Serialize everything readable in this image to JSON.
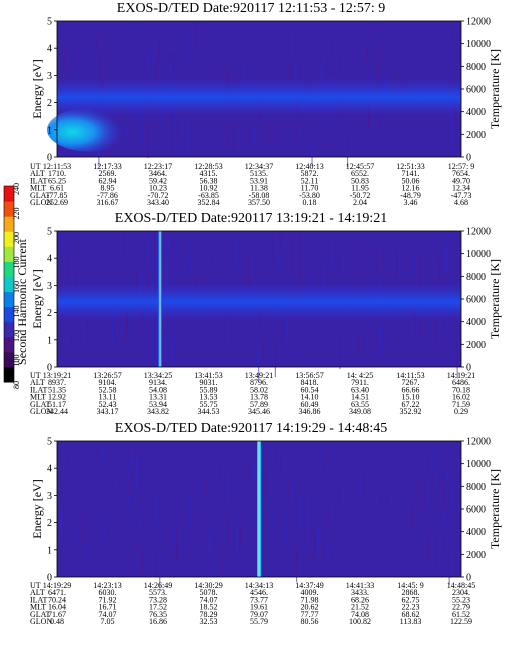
{
  "colorbar": {
    "label": "Second Harmonic Current",
    "ticks": [
      "80",
      "100",
      "120",
      "140",
      "160",
      "180",
      "200",
      "220",
      "240"
    ],
    "colors": [
      "#000000",
      "#3a0a5a",
      "#4c1280",
      "#3b2ab0",
      "#1a4be0",
      "#0a80e8",
      "#10c8c8",
      "#20d880",
      "#a0e840",
      "#f0f020",
      "#f8a818",
      "#f05010",
      "#e81010"
    ]
  },
  "chart_data": [
    {
      "type": "heatmap",
      "title": "EXOS-D/TED",
      "date": "Date:920117",
      "time_range": "12:11:53 - 12:57: 9",
      "ylabel": "Energy [eV]",
      "y2label": "Temperature [K]",
      "ylim": [
        0,
        5
      ],
      "y2lim": [
        0,
        12000
      ],
      "yticks": [
        "0",
        "1",
        "2",
        "3",
        "4",
        "5"
      ],
      "y2ticks": [
        "0",
        "2000",
        "4000",
        "6000",
        "8000",
        "10000",
        "12000"
      ],
      "ephemeris": {
        "labels": [
          "UT",
          "ALT",
          "ILAT",
          "MLT",
          "GLAT",
          "GLON"
        ],
        "rows": [
          [
            "12:11:53",
            "12:17:33",
            "12:23:17",
            "12:28:53",
            "12:34:37",
            "12:40:13",
            "12:45:57",
            "12:51:33",
            "12:57: 9"
          ],
          [
            "1710.",
            "2569.",
            "3464.",
            "4315.",
            "5135.",
            "5872.",
            "6552.",
            "7141.",
            "7654."
          ],
          [
            "65.25",
            "62.94",
            "59.42",
            "56.38",
            "53.91",
            "52.11",
            "50.83",
            "50.06",
            "49.70"
          ],
          [
            "6.61",
            "8.95",
            "10.23",
            "10.92",
            "11.38",
            "11.70",
            "11.95",
            "12.16",
            "12.34"
          ],
          [
            "-77.85",
            "-77.86",
            "-70.72",
            "-63.85",
            "-58.08",
            "-53.80",
            "-50.72",
            "-48.79",
            "-47.73"
          ],
          [
            "252.69",
            "316.67",
            "343.40",
            "352.84",
            "357.50",
            "0.18",
            "2.04",
            "3.46",
            "4.68"
          ]
        ]
      },
      "features": {
        "low_energy_band_eV": [
          0.2,
          1.8
        ],
        "band_center_eV": 2.2,
        "spike_position": null
      }
    },
    {
      "type": "heatmap",
      "title": "EXOS-D/TED",
      "date": "Date:920117",
      "time_range": "13:19:21 - 14:19:21",
      "ylabel": "Energy [eV]",
      "y2label": "Temperature [K]",
      "ylim": [
        0,
        5
      ],
      "y2lim": [
        0,
        12000
      ],
      "yticks": [
        "0",
        "1",
        "2",
        "3",
        "4",
        "5"
      ],
      "y2ticks": [
        "0",
        "2000",
        "4000",
        "6000",
        "8000",
        "10000",
        "12000"
      ],
      "ephemeris": {
        "labels": [
          "UT",
          "ALT",
          "ILAT",
          "MLT",
          "GLAT",
          "GLON"
        ],
        "rows": [
          [
            "13:19:21",
            "13:26:57",
            "13:34:25",
            "13:41:53",
            "13:49:21",
            "13:56:57",
            "14: 4:25",
            "14:11:53",
            "14:19:21"
          ],
          [
            "8937.",
            "9104.",
            "9134.",
            "9031.",
            "8796.",
            "8418.",
            "7911.",
            "7267.",
            "6486."
          ],
          [
            "51.35",
            "52.58",
            "54.08",
            "55.89",
            "58.02",
            "60.54",
            "63.40",
            "66.66",
            "70.18"
          ],
          [
            "12.92",
            "13.11",
            "13.31",
            "13.53",
            "13.78",
            "14.10",
            "14.51",
            "15.10",
            "16.02"
          ],
          [
            "51.17",
            "52.43",
            "53.94",
            "55.75",
            "57.89",
            "60.49",
            "63.55",
            "67.22",
            "71.59"
          ],
          [
            "342.44",
            "343.17",
            "343.82",
            "344.53",
            "345.46",
            "346.86",
            "349.08",
            "352.92",
            "0.29"
          ]
        ]
      },
      "features": {
        "low_energy_band_eV": null,
        "band_center_eV": 2.4,
        "spike_position": 0.255
      }
    },
    {
      "type": "heatmap",
      "title": "EXOS-D/TED",
      "date": "Date:920117",
      "time_range": "14:19:29 - 14:48:45",
      "ylabel": "Energy [eV]",
      "y2label": "Temperature [K]",
      "ylim": [
        0,
        5
      ],
      "y2lim": [
        0,
        12000
      ],
      "yticks": [
        "0",
        "1",
        "2",
        "3",
        "4",
        "5"
      ],
      "y2ticks": [
        "0",
        "2000",
        "4000",
        "6000",
        "8000",
        "10000",
        "12000"
      ],
      "ephemeris": {
        "labels": [
          "UT",
          "ALT",
          "ILAT",
          "MLT",
          "GLAT",
          "GLON"
        ],
        "rows": [
          [
            "14:19:29",
            "14:23:13",
            "14:26:49",
            "14:30:29",
            "14:34:13",
            "14:37:49",
            "14:41:33",
            "14:45: 9",
            "14:48:45"
          ],
          [
            "6471.",
            "6030.",
            "5573.",
            "5078.",
            "4546.",
            "4009.",
            "3433.",
            "2868.",
            "2304."
          ],
          [
            "70.24",
            "71.92",
            "73.28",
            "74.07",
            "73.77",
            "71.98",
            "68.26",
            "62.75",
            "55.23"
          ],
          [
            "16.04",
            "16.71",
            "17.52",
            "18.52",
            "19.61",
            "20.62",
            "21.52",
            "22.23",
            "22.79"
          ],
          [
            "71.67",
            "74.07",
            "76.35",
            "78.29",
            "79.07",
            "77.77",
            "74.08",
            "68.62",
            "61.52"
          ],
          [
            "0.48",
            "7.05",
            "16.86",
            "32.53",
            "55.79",
            "80.56",
            "100.82",
            "113.83",
            "122.59"
          ]
        ]
      },
      "features": {
        "low_energy_band_eV": null,
        "band_center_eV": null,
        "spike_position": 0.5
      }
    }
  ]
}
